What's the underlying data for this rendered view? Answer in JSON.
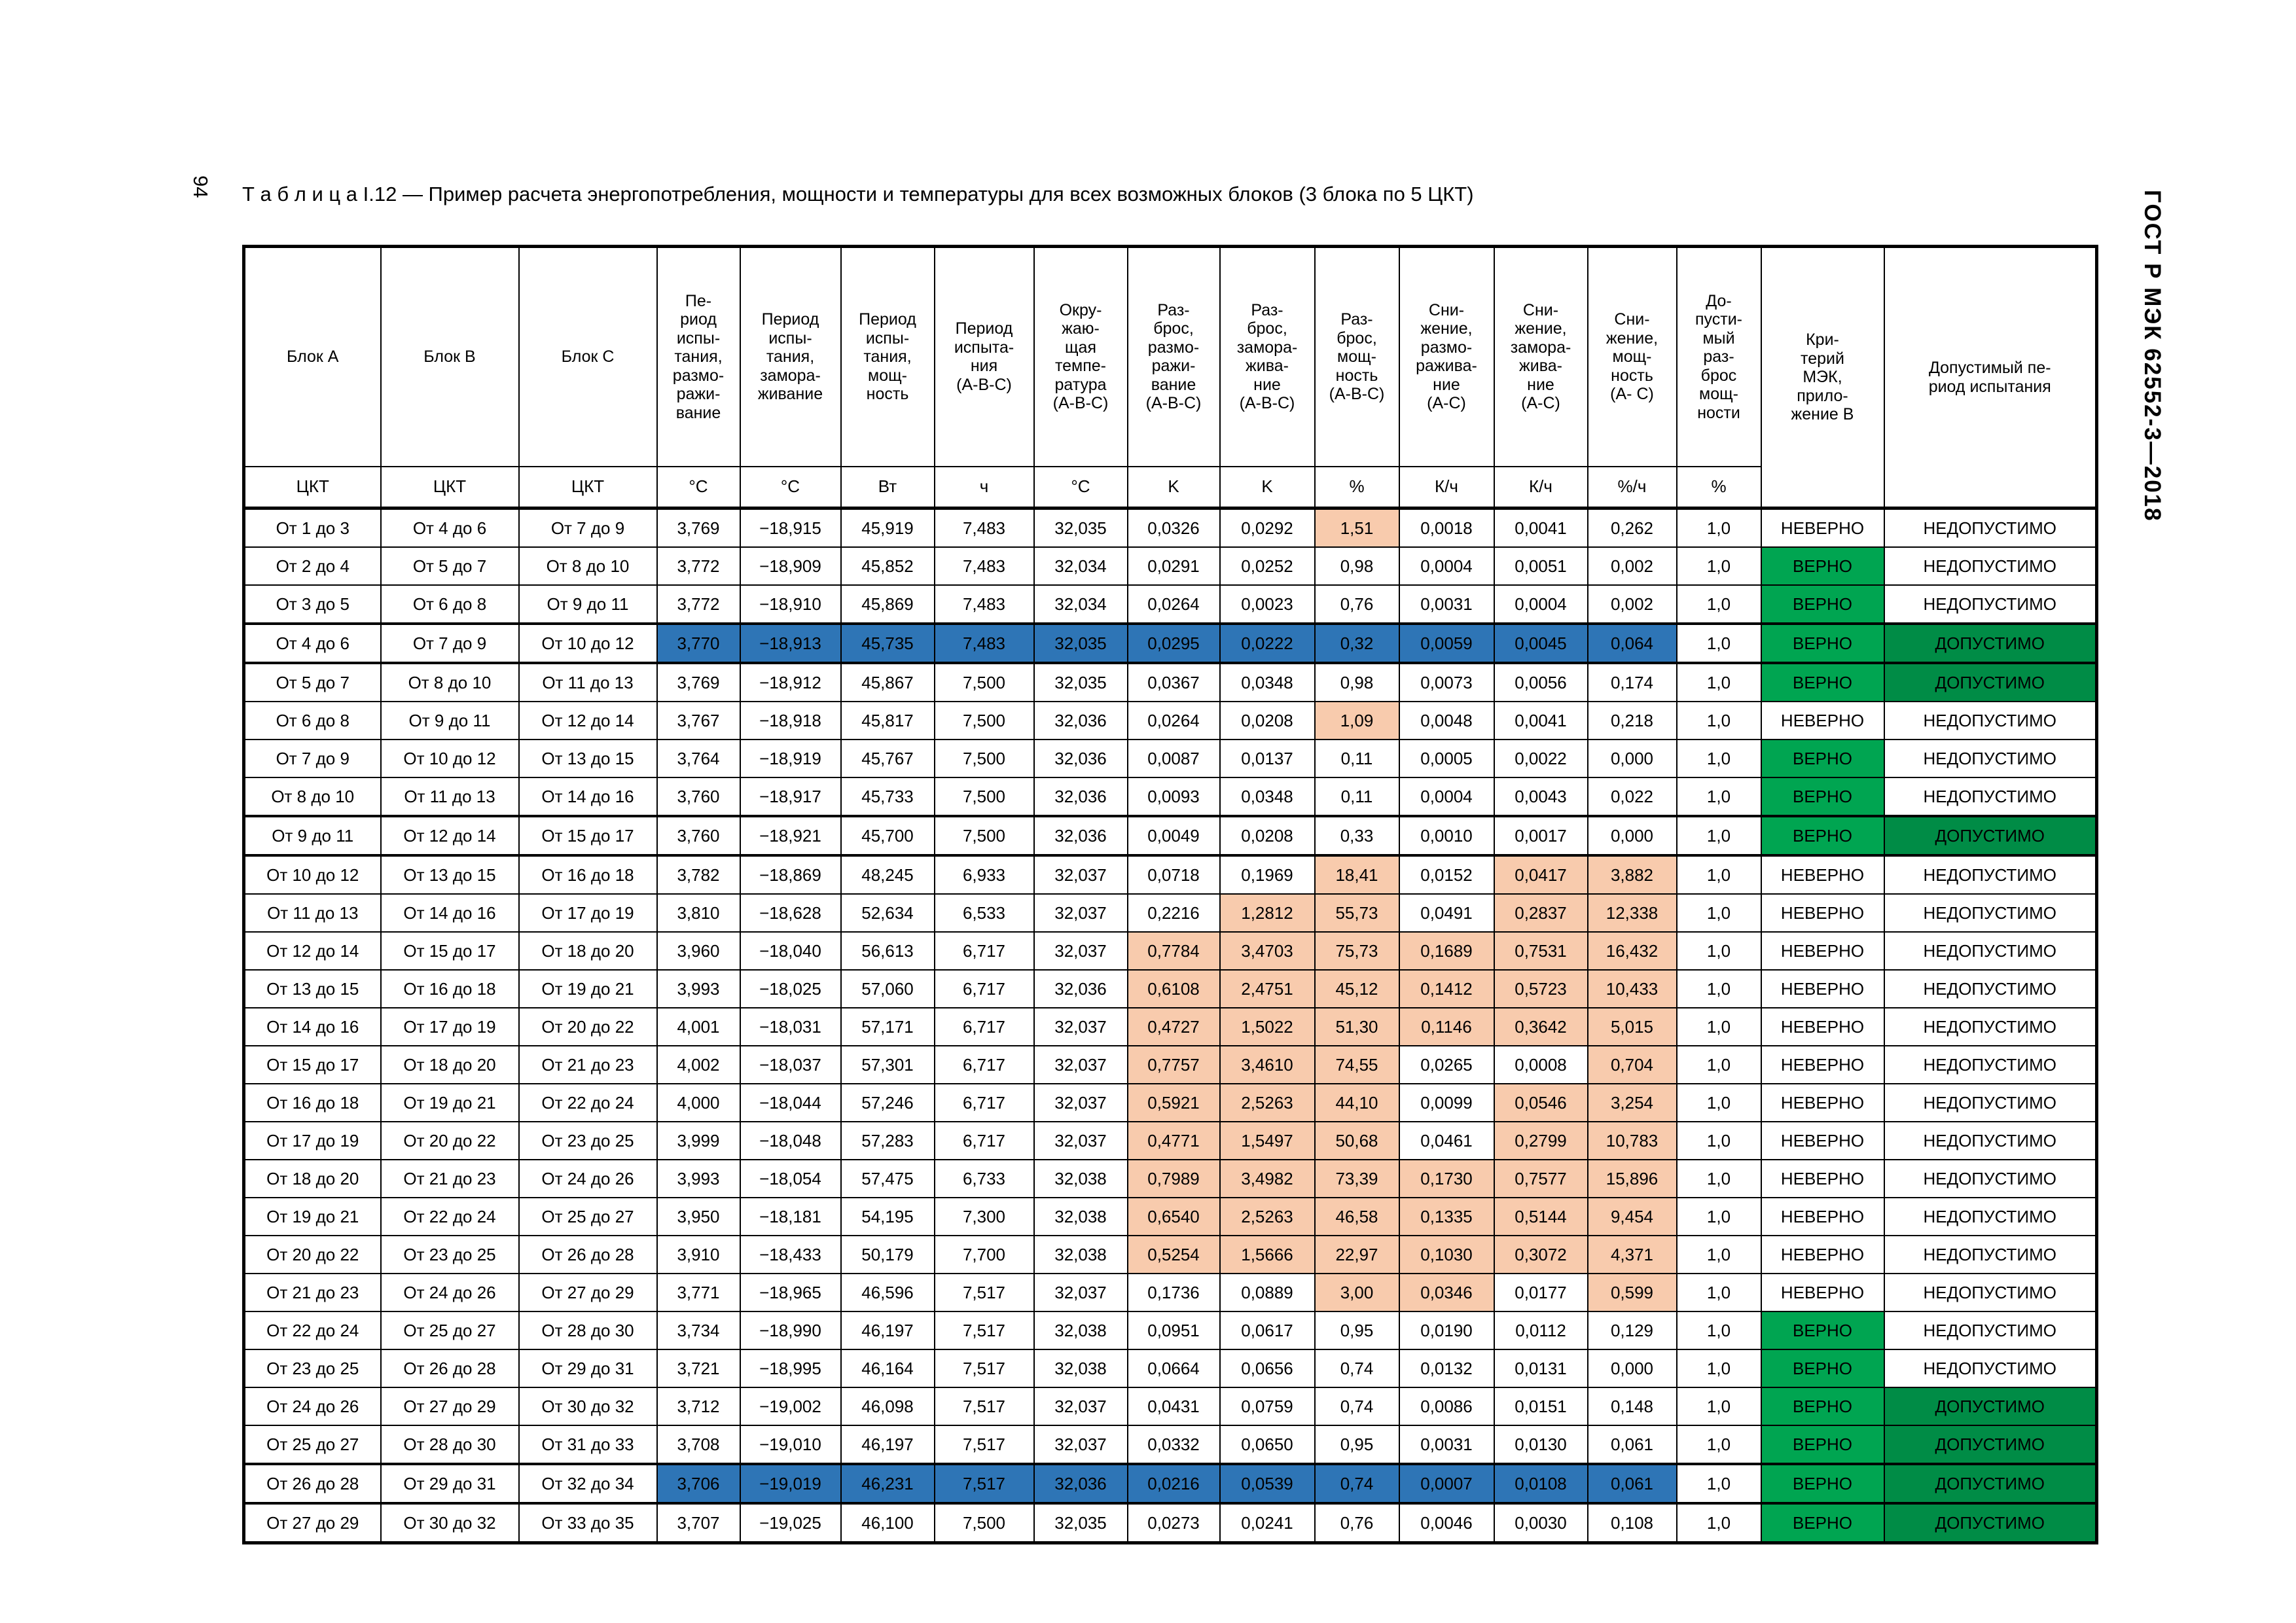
{
  "page": {
    "number": "94",
    "standard": "ГОСТ Р МЭК 62552-3—2018",
    "title": "Т а б л и ц а I.12 — Пример расчета энергопотребления, мощности и температуры для всех возможных блоков (3 блока по 5 ЦКТ)"
  },
  "colors": {
    "orange": "#F8CBAD",
    "blue": "#2E75B6",
    "green_verdict": "#00A551",
    "green_allowed": "#008C46"
  },
  "table": {
    "columns": [
      {
        "label": "Блок A",
        "unit": "ЦКТ"
      },
      {
        "label": "Блок B",
        "unit": "ЦКТ"
      },
      {
        "label": "Блок C",
        "unit": "ЦКТ"
      },
      {
        "label": "Пе-\nриод\nиспы-\nтания,\nразмо-\nражи-\nвание",
        "unit": "°C"
      },
      {
        "label": "Период\nиспы-\nтания,\nзамора-\nживание",
        "unit": "°C"
      },
      {
        "label": "Период\nиспы-\nтания,\nмощ-\nность",
        "unit": "Вт"
      },
      {
        "label": "Период\nиспыта-\nния\n(А-В-С)",
        "unit": "ч"
      },
      {
        "label": "Окру-\nжаю-\nщая\nтемпе-\nратура\n(А-В-С)",
        "unit": "°C"
      },
      {
        "label": "Раз-\nброс,\nразмо-\nражи-\nвание\n(А-В-С)",
        "unit": "K"
      },
      {
        "label": "Раз-\nброс,\nзамора-\nжива-\nние\n(А-В-С)",
        "unit": "K"
      },
      {
        "label": "Раз-\nброс,\nмощ-\nность\n(А-В-С)",
        "unit": "%"
      },
      {
        "label": "Сни-\nжение,\nразмо-\nражива-\nние\n(А-С)",
        "unit": "К/ч"
      },
      {
        "label": "Сни-\nжение,\nзамора-\nжива-\nние\n(А-С)",
        "unit": "К/ч"
      },
      {
        "label": "Сни-\nжение,\nмощ-\nность\n(А- С)",
        "unit": "%/ч"
      },
      {
        "label": "До-\nпусти-\nмый\nраз-\nброс\nмощ-\nности",
        "unit": "%"
      },
      {
        "label": "Кри-\nтерий\nМЭК,\nприло-\nжение В"
      },
      {
        "label": "Допустимый пе-\nриод испытания"
      }
    ],
    "rows": [
      {
        "cells": [
          "От 1 до 3",
          "От 4 до 6",
          "От 7 до 9",
          "3,769",
          "−18,915",
          "45,919",
          "7,483",
          "32,035",
          "0,0326",
          "0,0292",
          "1,51",
          "0,0018",
          "0,0041",
          "0,262",
          "1,0",
          "НЕВЕРНО",
          "НЕДОПУСТИМО"
        ],
        "orange": [
          10
        ]
      },
      {
        "cells": [
          "От 2 до 4",
          "От 5 до 7",
          "От 8 до 10",
          "3,772",
          "−18,909",
          "45,852",
          "7,483",
          "32,034",
          "0,0291",
          "0,0252",
          "0,98",
          "0,0004",
          "0,0051",
          "0,002",
          "1,0",
          "ВЕРНО",
          "НЕДОПУСТИМО"
        ]
      },
      {
        "cells": [
          "От 3 до 5",
          "От 6 до 8",
          "От 9 до 11",
          "3,772",
          "−18,910",
          "45,869",
          "7,483",
          "32,034",
          "0,0264",
          "0,0023",
          "0,76",
          "0,0031",
          "0,0004",
          "0,002",
          "1,0",
          "ВЕРНО",
          "НЕДОПУСТИМО"
        ]
      },
      {
        "cells": [
          "От 4 до 6",
          "От 7 до 9",
          "От 10 до 12",
          "3,770",
          "−18,913",
          "45,735",
          "7,483",
          "32,035",
          "0,0295",
          "0,0222",
          "0,32",
          "0,0059",
          "0,0045",
          "0,064",
          "1,0",
          "ВЕРНО",
          "ДОПУСТИМО"
        ],
        "blue": [
          3,
          4,
          5,
          6,
          7,
          8,
          9,
          10,
          11,
          12,
          13
        ],
        "thick": true
      },
      {
        "cells": [
          "От 5 до 7",
          "От 8 до 10",
          "От 11 до 13",
          "3,769",
          "−18,912",
          "45,867",
          "7,500",
          "32,035",
          "0,0367",
          "0,0348",
          "0,98",
          "0,0073",
          "0,0056",
          "0,174",
          "1,0",
          "ВЕРНО",
          "ДОПУСТИМО"
        ]
      },
      {
        "cells": [
          "От 6 до 8",
          "От 9 до 11",
          "От 12 до 14",
          "3,767",
          "−18,918",
          "45,817",
          "7,500",
          "32,036",
          "0,0264",
          "0,0208",
          "1,09",
          "0,0048",
          "0,0041",
          "0,218",
          "1,0",
          "НЕВЕРНО",
          "НЕДОПУСТИМО"
        ],
        "orange": [
          10
        ]
      },
      {
        "cells": [
          "От 7 до 9",
          "От 10 до 12",
          "От 13 до 15",
          "3,764",
          "−18,919",
          "45,767",
          "7,500",
          "32,036",
          "0,0087",
          "0,0137",
          "0,11",
          "0,0005",
          "0,0022",
          "0,000",
          "1,0",
          "ВЕРНО",
          "НЕДОПУСТИМО"
        ]
      },
      {
        "cells": [
          "От 8 до 10",
          "От 11 до 13",
          "От 14 до 16",
          "3,760",
          "−18,917",
          "45,733",
          "7,500",
          "32,036",
          "0,0093",
          "0,0348",
          "0,11",
          "0,0004",
          "0,0043",
          "0,022",
          "1,0",
          "ВЕРНО",
          "НЕДОПУСТИМО"
        ]
      },
      {
        "cells": [
          "От 9 до 11",
          "От 12 до 14",
          "От 15 до 17",
          "3,760",
          "−18,921",
          "45,700",
          "7,500",
          "32,036",
          "0,0049",
          "0,0208",
          "0,33",
          "0,0010",
          "0,0017",
          "0,000",
          "1,0",
          "ВЕРНО",
          "ДОПУСТИМО"
        ],
        "thick": true
      },
      {
        "cells": [
          "От 10 до 12",
          "От 13 до 15",
          "От 16 до 18",
          "3,782",
          "−18,869",
          "48,245",
          "6,933",
          "32,037",
          "0,0718",
          "0,1969",
          "18,41",
          "0,0152",
          "0,0417",
          "3,882",
          "1,0",
          "НЕВЕРНО",
          "НЕДОПУСТИМО"
        ],
        "orange": [
          10,
          12,
          13
        ]
      },
      {
        "cells": [
          "От 11 до 13",
          "От 14 до 16",
          "От 17 до 19",
          "3,810",
          "−18,628",
          "52,634",
          "6,533",
          "32,037",
          "0,2216",
          "1,2812",
          "55,73",
          "0,0491",
          "0,2837",
          "12,338",
          "1,0",
          "НЕВЕРНО",
          "НЕДОПУСТИМО"
        ],
        "orange": [
          9,
          10,
          12,
          13
        ]
      },
      {
        "cells": [
          "От 12 до 14",
          "От 15 до 17",
          "От 18 до 20",
          "3,960",
          "−18,040",
          "56,613",
          "6,717",
          "32,037",
          "0,7784",
          "3,4703",
          "75,73",
          "0,1689",
          "0,7531",
          "16,432",
          "1,0",
          "НЕВЕРНО",
          "НЕДОПУСТИМО"
        ],
        "orange": [
          8,
          9,
          10,
          11,
          12,
          13
        ]
      },
      {
        "cells": [
          "От 13 до 15",
          "От 16 до 18",
          "От 19 до 21",
          "3,993",
          "−18,025",
          "57,060",
          "6,717",
          "32,036",
          "0,6108",
          "2,4751",
          "45,12",
          "0,1412",
          "0,5723",
          "10,433",
          "1,0",
          "НЕВЕРНО",
          "НЕДОПУСТИМО"
        ],
        "orange": [
          8,
          9,
          10,
          11,
          12,
          13
        ]
      },
      {
        "cells": [
          "От 14 до 16",
          "От 17 до 19",
          "От 20 до 22",
          "4,001",
          "−18,031",
          "57,171",
          "6,717",
          "32,037",
          "0,4727",
          "1,5022",
          "51,30",
          "0,1146",
          "0,3642",
          "5,015",
          "1,0",
          "НЕВЕРНО",
          "НЕДОПУСТИМО"
        ],
        "orange": [
          8,
          9,
          10,
          11,
          12,
          13
        ]
      },
      {
        "cells": [
          "От 15 до 17",
          "От 18 до 20",
          "От 21 до 23",
          "4,002",
          "−18,037",
          "57,301",
          "6,717",
          "32,037",
          "0,7757",
          "3,4610",
          "74,55",
          "0,0265",
          "0,0008",
          "0,704",
          "1,0",
          "НЕВЕРНО",
          "НЕДОПУСТИМО"
        ],
        "orange": [
          8,
          9,
          10,
          13
        ]
      },
      {
        "cells": [
          "От 16 до 18",
          "От 19 до 21",
          "От 22 до 24",
          "4,000",
          "−18,044",
          "57,246",
          "6,717",
          "32,037",
          "0,5921",
          "2,5263",
          "44,10",
          "0,0099",
          "0,0546",
          "3,254",
          "1,0",
          "НЕВЕРНО",
          "НЕДОПУСТИМО"
        ],
        "orange": [
          8,
          9,
          10,
          12,
          13
        ]
      },
      {
        "cells": [
          "От 17 до 19",
          "От 20 до 22",
          "От 23 до 25",
          "3,999",
          "−18,048",
          "57,283",
          "6,717",
          "32,037",
          "0,4771",
          "1,5497",
          "50,68",
          "0,0461",
          "0,2799",
          "10,783",
          "1,0",
          "НЕВЕРНО",
          "НЕДОПУСТИМО"
        ],
        "orange": [
          8,
          9,
          10,
          12,
          13
        ]
      },
      {
        "cells": [
          "От 18 до 20",
          "От 21 до 23",
          "От 24 до 26",
          "3,993",
          "−18,054",
          "57,475",
          "6,733",
          "32,038",
          "0,7989",
          "3,4982",
          "73,39",
          "0,1730",
          "0,7577",
          "15,896",
          "1,0",
          "НЕВЕРНО",
          "НЕДОПУСТИМО"
        ],
        "orange": [
          8,
          9,
          10,
          11,
          12,
          13
        ]
      },
      {
        "cells": [
          "От 19 до 21",
          "От 22 до 24",
          "От 25 до 27",
          "3,950",
          "−18,181",
          "54,195",
          "7,300",
          "32,038",
          "0,6540",
          "2,5263",
          "46,58",
          "0,1335",
          "0,5144",
          "9,454",
          "1,0",
          "НЕВЕРНО",
          "НЕДОПУСТИМО"
        ],
        "orange": [
          8,
          9,
          10,
          11,
          12,
          13
        ]
      },
      {
        "cells": [
          "От 20 до 22",
          "От 23 до 25",
          "От 26 до 28",
          "3,910",
          "−18,433",
          "50,179",
          "7,700",
          "32,038",
          "0,5254",
          "1,5666",
          "22,97",
          "0,1030",
          "0,3072",
          "4,371",
          "1,0",
          "НЕВЕРНО",
          "НЕДОПУСТИМО"
        ],
        "orange": [
          8,
          9,
          10,
          11,
          12,
          13
        ]
      },
      {
        "cells": [
          "От 21 до 23",
          "От 24 до 26",
          "От 27 до 29",
          "3,771",
          "−18,965",
          "46,596",
          "7,517",
          "32,037",
          "0,1736",
          "0,0889",
          "3,00",
          "0,0346",
          "0,0177",
          "0,599",
          "1,0",
          "НЕВЕРНО",
          "НЕДОПУСТИМО"
        ],
        "orange": [
          10,
          11,
          13
        ]
      },
      {
        "cells": [
          "От 22 до 24",
          "От 25 до 27",
          "От 28 до 30",
          "3,734",
          "−18,990",
          "46,197",
          "7,517",
          "32,038",
          "0,0951",
          "0,0617",
          "0,95",
          "0,0190",
          "0,0112",
          "0,129",
          "1,0",
          "ВЕРНО",
          "НЕДОПУСТИМО"
        ]
      },
      {
        "cells": [
          "От 23 до 25",
          "От 26 до 28",
          "От 29 до 31",
          "3,721",
          "−18,995",
          "46,164",
          "7,517",
          "32,038",
          "0,0664",
          "0,0656",
          "0,74",
          "0,0132",
          "0,0131",
          "0,000",
          "1,0",
          "ВЕРНО",
          "НЕДОПУСТИМО"
        ]
      },
      {
        "cells": [
          "От 24 до 26",
          "От 27 до 29",
          "От 30 до 32",
          "3,712",
          "−19,002",
          "46,098",
          "7,517",
          "32,037",
          "0,0431",
          "0,0759",
          "0,74",
          "0,0086",
          "0,0151",
          "0,148",
          "1,0",
          "ВЕРНО",
          "ДОПУСТИМО"
        ]
      },
      {
        "cells": [
          "От 25 до 27",
          "От 28 до 30",
          "От 31 до 33",
          "3,708",
          "−19,010",
          "46,197",
          "7,517",
          "32,037",
          "0,0332",
          "0,0650",
          "0,95",
          "0,0031",
          "0,0130",
          "0,061",
          "1,0",
          "ВЕРНО",
          "ДОПУСТИМО"
        ]
      },
      {
        "cells": [
          "От 26 до 28",
          "От 29 до 31",
          "От 32 до 34",
          "3,706",
          "−19,019",
          "46,231",
          "7,517",
          "32,036",
          "0,0216",
          "0,0539",
          "0,74",
          "0,0007",
          "0,0108",
          "0,061",
          "1,0",
          "ВЕРНО",
          "ДОПУСТИМО"
        ],
        "blue": [
          3,
          4,
          5,
          6,
          7,
          8,
          9,
          10,
          11,
          12,
          13
        ],
        "thick": true
      },
      {
        "cells": [
          "От 27 до 29",
          "От 30 до 32",
          "От 33 до 35",
          "3,707",
          "−19,025",
          "46,100",
          "7,500",
          "32,035",
          "0,0273",
          "0,0241",
          "0,76",
          "0,0046",
          "0,0030",
          "0,108",
          "1,0",
          "ВЕРНО",
          "ДОПУСТИМО"
        ]
      }
    ]
  }
}
